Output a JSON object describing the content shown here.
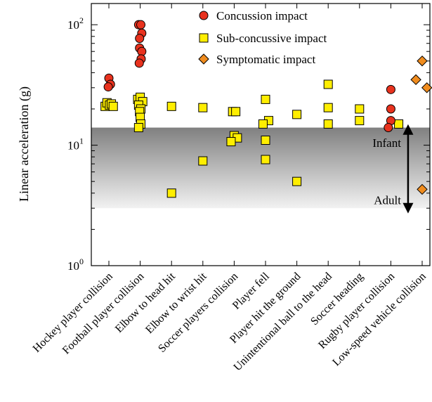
{
  "chart_data": {
    "type": "scatter",
    "title": "",
    "xlabel": "",
    "ylabel": "Linear acceleration (g)",
    "yscale": "log",
    "ylim": [
      1,
      150
    ],
    "grid": false,
    "legend_position": "top-center",
    "y_ticks": [
      {
        "value": 1,
        "base": "10",
        "exp": "0"
      },
      {
        "value": 10,
        "base": "10",
        "exp": "1"
      },
      {
        "value": 100,
        "base": "10",
        "exp": "2"
      }
    ],
    "categories": [
      "Hockey player collision",
      "Football player collision",
      "Elbow to head hit",
      "Elbow to wrist hit",
      "Soccer players collision",
      "Player fell",
      "Player hit the ground",
      "Unintentional ball to the head",
      "Soccer heading",
      "Rugby player collision",
      "Low-speed vehicle collision"
    ],
    "shaded_band": {
      "low": 3,
      "high": 14,
      "color_top": "#808080",
      "color_bottom": "#f0f0f0"
    },
    "annotations": [
      {
        "text": "Infant",
        "y": 10.5
      },
      {
        "text": "Adult",
        "y": 3.5
      }
    ],
    "arrow": {
      "x_category": 9.55,
      "y_top": 13.5,
      "y_bottom": 3.0
    },
    "series": [
      {
        "name": "Concussion impact",
        "marker": "circle",
        "color": "#e8321e",
        "points": [
          {
            "x": 0.0,
            "y": 36
          },
          {
            "x": 0.05,
            "y": 32
          },
          {
            "x": -0.02,
            "y": 30.5
          },
          {
            "x": -0.05,
            "y": 100
          },
          {
            "x": 0.02,
            "y": 100
          },
          {
            "x": 0.05,
            "y": 85
          },
          {
            "x": -0.02,
            "y": 77
          },
          {
            "x": -0.02,
            "y": 64
          },
          {
            "x": 0.05,
            "y": 60
          },
          {
            "x": 0.03,
            "y": 52
          },
          {
            "x": -0.03,
            "y": 48
          },
          {
            "x": 0.0,
            "y": 29
          },
          {
            "x": 0.0,
            "y": 20
          },
          {
            "x": 0.0,
            "y": 16
          },
          {
            "x": -0.08,
            "y": 14
          }
        ]
      },
      {
        "name": "Sub-concussive impact",
        "marker": "square",
        "color": "#ffee00",
        "points": [
          {
            "x": -0.12,
            "y": 21
          },
          {
            "x": -0.06,
            "y": 22.5
          },
          {
            "x": 0.02,
            "y": 21.5
          },
          {
            "x": 0.08,
            "y": 22
          },
          {
            "x": 0.14,
            "y": 21
          },
          {
            "x": -0.08,
            "y": 24
          },
          {
            "x": 0.0,
            "y": 25
          },
          {
            "x": 0.08,
            "y": 23
          },
          {
            "x": -0.05,
            "y": 21.5
          },
          {
            "x": 0.02,
            "y": 20
          },
          {
            "x": -0.02,
            "y": 19
          },
          {
            "x": 0.0,
            "y": 17
          },
          {
            "x": 0.02,
            "y": 15
          },
          {
            "x": -0.05,
            "y": 14
          },
          {
            "x": 0.0,
            "y": 21
          },
          {
            "x": 0.0,
            "y": 4
          },
          {
            "x": 0.0,
            "y": 20.5
          },
          {
            "x": 0.0,
            "y": 7.4
          },
          {
            "x": -0.05,
            "y": 19
          },
          {
            "x": 0.05,
            "y": 19
          },
          {
            "x": 0.0,
            "y": 12
          },
          {
            "x": 0.1,
            "y": 11.5
          },
          {
            "x": -0.1,
            "y": 10.7
          },
          {
            "x": 0.0,
            "y": 24
          },
          {
            "x": 0.1,
            "y": 16
          },
          {
            "x": -0.08,
            "y": 15
          },
          {
            "x": 0.0,
            "y": 11
          },
          {
            "x": 0.0,
            "y": 7.6
          },
          {
            "x": 0.0,
            "y": 18
          },
          {
            "x": 0.0,
            "y": 5
          },
          {
            "x": 0.0,
            "y": 32
          },
          {
            "x": 0.0,
            "y": 20.5
          },
          {
            "x": 0.0,
            "y": 15
          },
          {
            "x": 0.0,
            "y": 20
          },
          {
            "x": 0.0,
            "y": 16
          },
          {
            "x": 0.25,
            "y": 15
          }
        ],
        "point_categories": [
          0,
          0,
          0,
          0,
          0,
          1,
          1,
          1,
          1,
          1,
          1,
          1,
          1,
          1,
          2,
          2,
          3,
          3,
          4,
          4,
          4,
          4,
          4,
          5,
          5,
          5,
          5,
          5,
          6,
          6,
          7,
          7,
          7,
          8,
          8,
          9
        ]
      },
      {
        "name": "Symptomatic impact",
        "marker": "diamond",
        "color": "#f08c1e",
        "points": [
          {
            "x": -0.2,
            "y": 35
          },
          {
            "x": 0.0,
            "y": 50
          },
          {
            "x": 0.15,
            "y": 30
          },
          {
            "x": 0.0,
            "y": 4.3
          }
        ]
      }
    ],
    "series_categories": {
      "Concussion impact": [
        0,
        0,
        0,
        1,
        1,
        1,
        1,
        1,
        1,
        1,
        1,
        9,
        9,
        9,
        9
      ],
      "Symptomatic impact": [
        10,
        10,
        10,
        10
      ]
    }
  }
}
